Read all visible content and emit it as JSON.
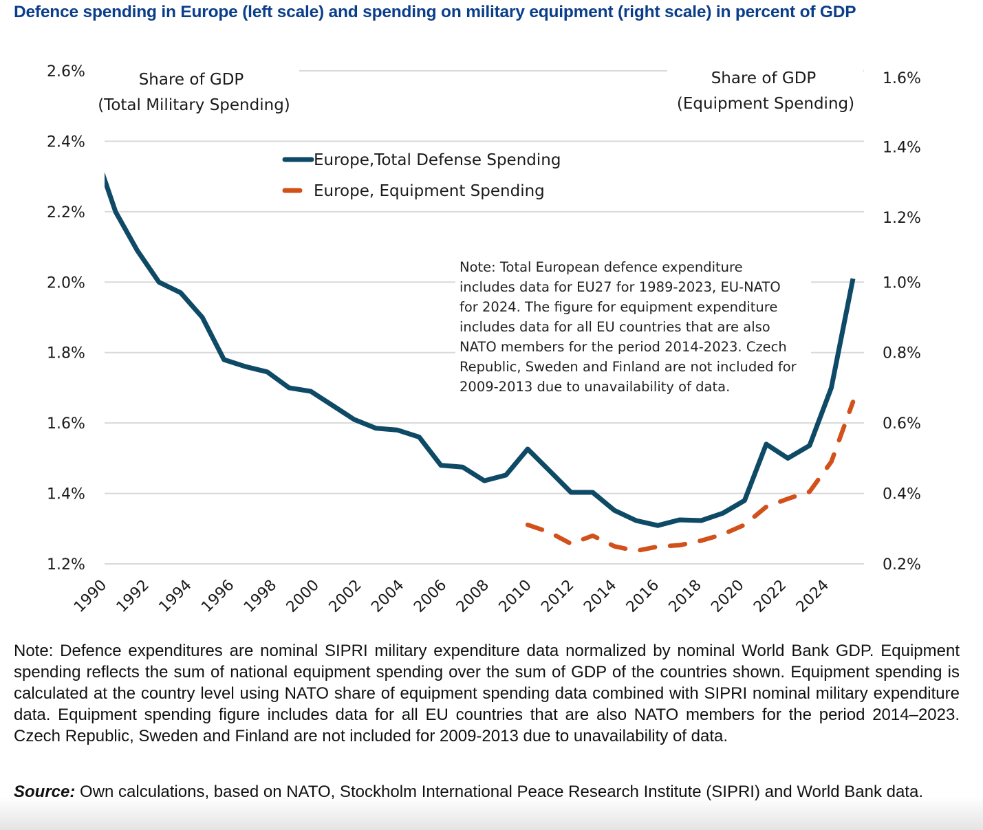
{
  "header": {
    "title": "Defence spending in Europe (left scale) and spending on military equipment (right scale) in percent of GDP"
  },
  "chart_data": {
    "type": "line",
    "title": "Defence spending in Europe (left scale) and spending on military equipment (right scale) in percent of GDP",
    "left_axis_title": [
      "Share of GDP",
      "(Total Military Spending)"
    ],
    "right_axis_title": [
      "Share of GDP",
      "(Equipment Spending)"
    ],
    "left_ylim": [
      1.2,
      2.6
    ],
    "right_ylim": [
      0.2,
      1.6
    ],
    "left_ticks": [
      "1.2%",
      "1.4%",
      "1.6%",
      "1.8%",
      "2.0%",
      "2.2%",
      "2.4%",
      "2.6%"
    ],
    "left_tick_values": [
      1.2,
      1.4,
      1.6,
      1.8,
      2.0,
      2.2,
      2.4,
      2.6
    ],
    "right_ticks": [
      "0.2%",
      "0.4%",
      "0.6%",
      "0.8%",
      "1.0%",
      "1.2%",
      "1.4%",
      "1.6%"
    ],
    "right_tick_values": [
      0.2,
      0.4,
      0.6,
      0.8,
      1.0,
      1.2,
      1.4,
      1.6
    ],
    "x_tick_labels": [
      "1990",
      "1992",
      "1994",
      "1996",
      "1998",
      "2000",
      "2002",
      "2004",
      "2006",
      "2008",
      "2010",
      "2012",
      "2014",
      "2016",
      "2018",
      "2020",
      "2022",
      "2024"
    ],
    "xlim": [
      1990,
      2024
    ],
    "grid": true,
    "legend_position": "top-center",
    "series": [
      {
        "name": "Europe,Total Defense Spending",
        "axis": "left",
        "style": "solid",
        "color": "#0e4a66",
        "x": [
          1989,
          1990,
          1991,
          1992,
          1993,
          1994,
          1995,
          1996,
          1997,
          1998,
          1999,
          2000,
          2001,
          2002,
          2003,
          2004,
          2005,
          2006,
          2007,
          2008,
          2009,
          2010,
          2011,
          2012,
          2013,
          2014,
          2015,
          2016,
          2017,
          2018,
          2019,
          2020,
          2021,
          2022,
          2023,
          2024
        ],
        "values": [
          2.38,
          2.2,
          2.09,
          2.0,
          1.97,
          1.9,
          1.78,
          1.76,
          1.745,
          1.7,
          1.69,
          1.65,
          1.61,
          1.585,
          1.58,
          1.56,
          1.48,
          1.475,
          1.436,
          1.452,
          1.526,
          1.465,
          1.403,
          1.403,
          1.352,
          1.323,
          1.309,
          1.325,
          1.323,
          1.344,
          1.38,
          1.54,
          1.5,
          1.536,
          1.7,
          2.01
        ]
      },
      {
        "name": "Europe, Equipment Spending",
        "axis": "right",
        "style": "dashed",
        "color": "#d2501a",
        "x": [
          2009,
          2010,
          2011,
          2012,
          2013,
          2014,
          2015,
          2016,
          2017,
          2018,
          2019,
          2020,
          2021,
          2022,
          2023,
          2024
        ],
        "values": [
          0.311,
          0.29,
          0.257,
          0.28,
          0.25,
          0.237,
          0.249,
          0.253,
          0.266,
          0.284,
          0.311,
          0.362,
          0.385,
          0.405,
          0.49,
          0.66
        ]
      }
    ],
    "annotation": "Note: Total European defence expenditure includes data for EU27 for 1989-2023, EU-NATO for 2024. The figure for equipment expenditure includes data for all EU countries that are also NATO members for the period 2014-2023. Czech Republic, Sweden and Finland are not included for 2009-2013 due to unavailability of data."
  },
  "annotation_lines": [
    "Note: Total European defence expenditure",
    "includes data for EU27 for 1989-2023, EU-NATO",
    "for 2024. The figure for equipment expenditure",
    "includes data for all EU countries that are also",
    "NATO members for the period 2014-2023. Czech",
    "Republic, Sweden and Finland are not included for",
    "2009-2013 due to unavailability of data."
  ],
  "footer": {
    "note": "Note: Defence expenditures are nominal SIPRI military expenditure data normalized by nominal World Bank GDP. Equipment spending reflects the sum of national equipment spending over the sum of GDP of the countries shown. Equipment spending is calculated at the country level using NATO share of equipment spending data combined with SIPRI nominal military expenditure data. Equipment spending figure includes data for all EU countries that are also NATO members for the period 2014–2023. Czech Republic, Sweden and Finland are not included for 2009-2013 due to unavailability of data.",
    "source_label": "Source:",
    "source_text": " Own calculations, based on NATO, Stockholm International Peace Research Institute (SIPRI) and World Bank data."
  }
}
